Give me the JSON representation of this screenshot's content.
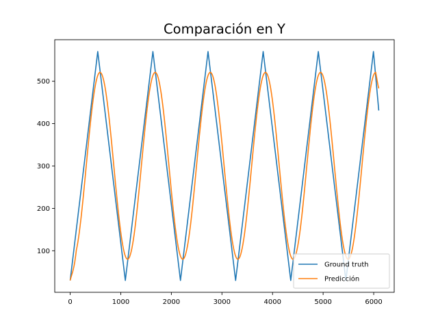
{
  "chart_data": {
    "type": "line",
    "title": "Comparación en Y",
    "xlabel": "",
    "ylabel": "",
    "xlim": [
      -305,
      6405
    ],
    "ylim": [
      2,
      598
    ],
    "x_ticks": [
      0,
      1000,
      2000,
      3000,
      4000,
      5000,
      6000
    ],
    "y_ticks": [
      100,
      200,
      300,
      400,
      500
    ],
    "grid": false,
    "legend_position": "lower right",
    "series": [
      {
        "name": "Ground truth",
        "color": "#1f77b4",
        "x": [
          0,
          545,
          1090,
          1635,
          2180,
          2725,
          3270,
          3815,
          4360,
          4905,
          5450,
          5995,
          6100
        ],
        "y": [
          30,
          570,
          30,
          570,
          30,
          570,
          30,
          570,
          30,
          570,
          30,
          570,
          431
        ]
      },
      {
        "name": "Predicción",
        "color": "#ff7f0e",
        "form": "smoothed",
        "x_start": 0,
        "x_end": 6100,
        "y_min": 80,
        "y_max": 521,
        "period": 1090,
        "peak_x": 590,
        "y_start": 30,
        "y_end": 483
      }
    ]
  }
}
